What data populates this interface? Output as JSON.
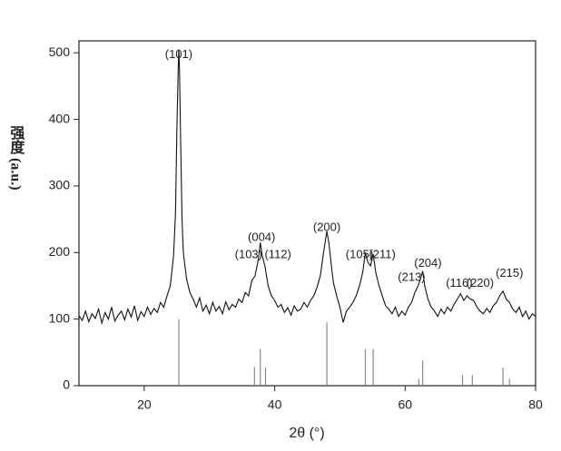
{
  "chart_data": {
    "type": "line",
    "x_label": "2θ (°)",
    "y_label": "强度 (a.u.)",
    "xlim": [
      10,
      80
    ],
    "xticks": [
      20,
      40,
      60,
      80
    ],
    "ylim": [
      0,
      518
    ],
    "yticks": [
      0,
      100,
      200,
      300,
      400,
      500
    ],
    "x": [
      10,
      10.5,
      11,
      11.5,
      12,
      12.5,
      13,
      13.5,
      14,
      14.5,
      15,
      15.5,
      16,
      16.5,
      17,
      17.5,
      18,
      18.5,
      19,
      19.5,
      20,
      20.5,
      21,
      21.5,
      22,
      22.5,
      23,
      23.5,
      24,
      24.5,
      24.8,
      25.0,
      25.2,
      25.3,
      25.4,
      25.6,
      25.8,
      26.0,
      26.5,
      27,
      27.5,
      28,
      28.5,
      29,
      29.5,
      30,
      30.5,
      31,
      31.5,
      32,
      32.5,
      33,
      33.5,
      34,
      34.5,
      35,
      35.5,
      36,
      36.5,
      37,
      37.5,
      37.8,
      38.1,
      38.5,
      39,
      39.5,
      40,
      40.5,
      41,
      41.5,
      42,
      42.5,
      43,
      43.5,
      44,
      44.5,
      45,
      45.5,
      46,
      46.5,
      47,
      47.5,
      48,
      48.3,
      48.7,
      49,
      49.5,
      50,
      50.5,
      51,
      51.5,
      52,
      52.5,
      53,
      53.5,
      53.9,
      54.3,
      54.7,
      55.1,
      55.5,
      56,
      56.5,
      57,
      57.5,
      58,
      58.5,
      59,
      59.5,
      60,
      60.5,
      61,
      61.5,
      62,
      62.5,
      62.7,
      63,
      63.5,
      64,
      64.5,
      65,
      65.5,
      66,
      66.5,
      67,
      67.5,
      68,
      68.5,
      69,
      69.5,
      70,
      70.5,
      71,
      71.5,
      72,
      72.5,
      73,
      73.5,
      74,
      74.5,
      75,
      75.5,
      76,
      76.5,
      77,
      77.5,
      78,
      78.5,
      79,
      79.5,
      80
    ],
    "series": [
      {
        "color": "#111111",
        "values": [
          105,
          98,
          112,
          96,
          108,
          101,
          115,
          94,
          110,
          100,
          118,
          97,
          106,
          112,
          99,
          115,
          103,
          120,
          98,
          111,
          104,
          118,
          107,
          116,
          110,
          125,
          118,
          135,
          150,
          195,
          260,
          380,
          470,
          505,
          480,
          360,
          250,
          200,
          160,
          140,
          130,
          118,
          132,
          112,
          121,
          108,
          125,
          112,
          119,
          108,
          126,
          114,
          122,
          118,
          130,
          125,
          140,
          135,
          158,
          165,
          190,
          215,
          195,
          180,
          150,
          135,
          128,
          118,
          122,
          110,
          117,
          106,
          120,
          112,
          115,
          125,
          118,
          128,
          135,
          148,
          165,
          200,
          232,
          215,
          180,
          155,
          135,
          118,
          95,
          112,
          118,
          125,
          135,
          150,
          170,
          200,
          185,
          180,
          198,
          170,
          150,
          135,
          120,
          115,
          108,
          118,
          104,
          112,
          106,
          118,
          125,
          140,
          150,
          165,
          172,
          150,
          130,
          118,
          112,
          104,
          115,
          108,
          118,
          112,
          122,
          130,
          138,
          128,
          135,
          130,
          128,
          118,
          112,
          108,
          116,
          110,
          120,
          125,
          135,
          142,
          130,
          125,
          115,
          110,
          118,
          104,
          112,
          100,
          108,
          104
        ]
      }
    ],
    "reference": {
      "color": "#888888",
      "x": [
        25.3,
        36.9,
        37.8,
        38.6,
        48.0,
        53.9,
        55.1,
        62.1,
        62.7,
        68.8,
        70.3,
        75.0,
        76.0
      ],
      "values": [
        100,
        28,
        55,
        27,
        95,
        55,
        55,
        10,
        38,
        16,
        16,
        27,
        10
      ]
    },
    "annotations": [
      {
        "text": "(101)",
        "x": 25.3,
        "y": 497
      },
      {
        "text": "(004)",
        "x": 38,
        "y": 222
      },
      {
        "text": "(103)",
        "x": 36,
        "y": 196
      },
      {
        "text": "(112)",
        "x": 40.5,
        "y": 196
      },
      {
        "text": "(200)",
        "x": 48,
        "y": 237
      },
      {
        "text": "(105)",
        "x": 53,
        "y": 196
      },
      {
        "text": "(211)",
        "x": 56.5,
        "y": 196
      },
      {
        "text": "(204)",
        "x": 63.5,
        "y": 183
      },
      {
        "text": "(213)",
        "x": 61,
        "y": 162
      },
      {
        "text": "(116)",
        "x": 68.3,
        "y": 153
      },
      {
        "text": "(220)",
        "x": 71.5,
        "y": 153
      },
      {
        "text": "(215)",
        "x": 76,
        "y": 168
      }
    ]
  }
}
